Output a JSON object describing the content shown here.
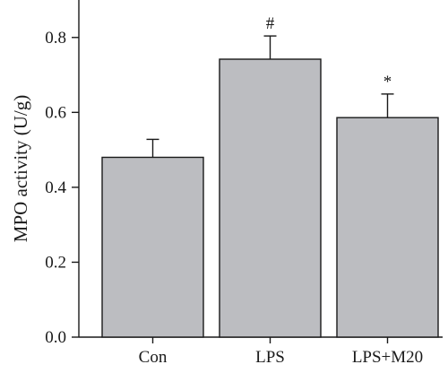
{
  "chart_data": {
    "type": "bar",
    "title": "",
    "xlabel": "",
    "ylabel": "MPO activity (U/g)",
    "ylim": [
      0,
      0.9
    ],
    "yticks": [
      0.0,
      0.2,
      0.4,
      0.6,
      0.8
    ],
    "ytick_labels": [
      "0.0",
      "0.2",
      "0.4",
      "0.6",
      "0.8"
    ],
    "categories": [
      "Con",
      "LPS",
      "LPS+M20"
    ],
    "values": [
      0.48,
      0.742,
      0.586
    ],
    "errors": [
      0.048,
      0.062,
      0.063
    ],
    "annotations": [
      "",
      "#",
      "*"
    ],
    "bar_color": "#bcbdc1",
    "edge_color": "#1a1a1a",
    "grid": false,
    "legend": "none"
  }
}
